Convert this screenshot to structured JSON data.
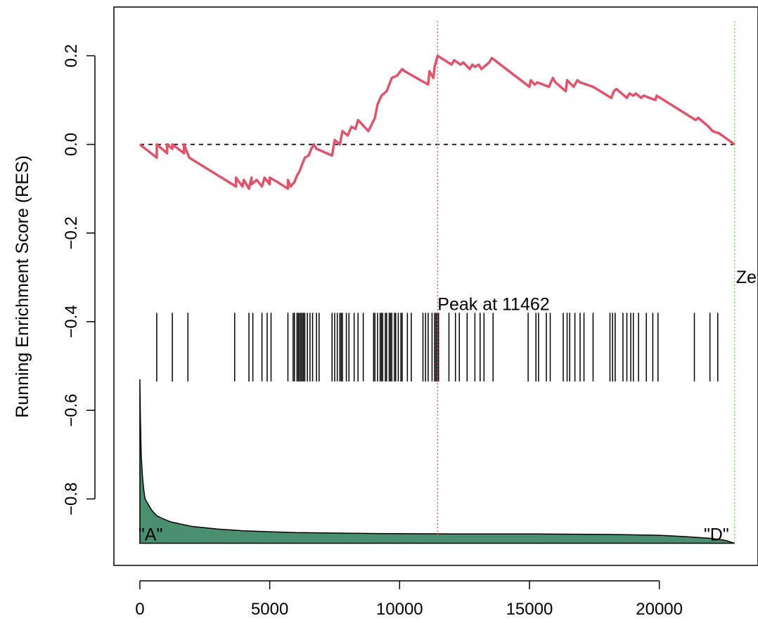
{
  "chart_data": {
    "type": "line",
    "title": "",
    "xlabel": "",
    "ylabel": "Running Enrichment Score (RES)",
    "xlim": [
      -1000,
      23800
    ],
    "ylim": [
      -0.95,
      0.31
    ],
    "x_ticks": [
      {
        "value": 0,
        "label": "0"
      },
      {
        "value": 5000,
        "label": "5000"
      },
      {
        "value": 10000,
        "label": "10000"
      },
      {
        "value": 15000,
        "label": "15000"
      },
      {
        "value": 20000,
        "label": "20000"
      }
    ],
    "y_ticks": [
      {
        "value": 0.2,
        "label": "0.2"
      },
      {
        "value": 0.0,
        "label": "0.0"
      },
      {
        "value": -0.2,
        "label": "−0.2"
      },
      {
        "value": -0.4,
        "label": "−0.4"
      },
      {
        "value": -0.6,
        "label": "−0.6"
      },
      {
        "value": -0.8,
        "label": "−0.8"
      }
    ],
    "grid": false,
    "legend": "none",
    "colors": {
      "res_line": "#DF536B",
      "peak_line": "#DF536B",
      "zero_line": "#61D04F",
      "baseline": "#000000",
      "hits": "#000000",
      "rank_fill": "#4A8F6F",
      "rank_outline": "#000000"
    },
    "reference_lines": {
      "baseline_y": 0.0,
      "peak_x": 11462,
      "zero_x": 22900
    },
    "annotations": {
      "peak_label": "Peak at 11462",
      "peak_label_y": -0.345,
      "zero_label": "Ze",
      "zero_label_y": -0.3,
      "left_group_label": "\"A\"",
      "right_group_label": "\"D\""
    },
    "series": [
      {
        "values_x": [
          0,
          650,
          650,
          1050,
          1050,
          1250,
          1250,
          1700,
          1700,
          1900,
          3700,
          3700,
          3950,
          4000,
          4200,
          4300,
          4300,
          4500,
          4700,
          4800,
          5000,
          5000,
          5300,
          5700,
          5700,
          5800,
          5950,
          6050,
          6150,
          6250,
          6350,
          6500,
          6600,
          6700,
          6800,
          7400,
          7500,
          7700,
          7800,
          8000,
          8150,
          8300,
          8400,
          8800,
          9050,
          9150,
          9300,
          9400,
          9500,
          9600,
          9700,
          9900,
          10100,
          10200,
          11100,
          11150,
          11300,
          11350,
          11462,
          12000,
          12100,
          12350,
          12450,
          12700,
          12800,
          12900,
          13050,
          13150,
          13450,
          13550,
          15000,
          15050,
          15200,
          15300,
          15750,
          15900,
          16000,
          16400,
          16450,
          16700,
          16850,
          16950,
          17450,
          18150,
          18250,
          18350,
          18750,
          18850,
          19000,
          19100,
          19300,
          19400,
          19850,
          19900,
          21400,
          21500,
          21900,
          22050,
          22300,
          22900
        ],
        "values_y": [
          0.0,
          -0.03,
          0.0,
          -0.02,
          0.0,
          -0.01,
          0.0,
          -0.02,
          0.0,
          -0.03,
          -0.095,
          -0.075,
          -0.095,
          -0.08,
          -0.1,
          -0.075,
          -0.09,
          -0.08,
          -0.095,
          -0.075,
          -0.09,
          -0.075,
          -0.085,
          -0.1,
          -0.08,
          -0.095,
          -0.085,
          -0.07,
          -0.06,
          -0.045,
          -0.03,
          -0.025,
          -0.01,
          0.0,
          -0.01,
          -0.025,
          0.01,
          0.0,
          0.03,
          0.02,
          0.04,
          0.035,
          0.055,
          0.03,
          0.06,
          0.09,
          0.11,
          0.115,
          0.12,
          0.135,
          0.15,
          0.155,
          0.17,
          0.165,
          0.135,
          0.165,
          0.15,
          0.175,
          0.2,
          0.18,
          0.19,
          0.18,
          0.185,
          0.17,
          0.18,
          0.175,
          0.18,
          0.17,
          0.185,
          0.195,
          0.13,
          0.145,
          0.135,
          0.14,
          0.13,
          0.15,
          0.14,
          0.12,
          0.145,
          0.13,
          0.145,
          0.14,
          0.13,
          0.105,
          0.12,
          0.125,
          0.105,
          0.115,
          0.11,
          0.115,
          0.105,
          0.11,
          0.1,
          0.11,
          0.055,
          0.06,
          0.04,
          0.03,
          0.025,
          0.0
        ]
      }
    ],
    "hits": [
      {
        "band_y_top": -0.38,
        "band_y_bottom": -0.535
      },
      [
        650,
        1250,
        1850,
        3650,
        4200,
        4350,
        4700,
        4900,
        5050,
        5700,
        5900,
        5950,
        6050,
        6100,
        6150,
        6200,
        6250,
        6300,
        6350,
        6450,
        6550,
        6650,
        6800,
        6900,
        7400,
        7500,
        7600,
        7700,
        7750,
        7800,
        7950,
        8050,
        8250,
        8400,
        8600,
        9000,
        9050,
        9150,
        9250,
        9300,
        9350,
        9450,
        9500,
        9600,
        9650,
        9700,
        9800,
        9850,
        9950,
        10050,
        10100,
        10300,
        10450,
        10900,
        11000,
        11100,
        11250,
        11350,
        11400,
        11450,
        11500,
        11900,
        12150,
        12300,
        12600,
        12900,
        13100,
        13250,
        13600,
        14950,
        15250,
        15350,
        15650,
        15800,
        16300,
        16450,
        16550,
        16750,
        16950,
        17100,
        17450,
        18100,
        18200,
        18300,
        18600,
        18750,
        18900,
        19000,
        19200,
        19500,
        19750,
        19950,
        21350,
        21950,
        22250
      ]
    ],
    "ranked_metric": {
      "baseline_y": -0.9,
      "x": [
        0,
        20,
        50,
        100,
        150,
        200,
        300,
        450,
        650,
        900,
        1200,
        1600,
        2000,
        3000,
        4000,
        6000,
        9000,
        12000,
        15000,
        18000,
        20000,
        21000,
        22000,
        22500,
        22900
      ],
      "y": [
        -0.53,
        -0.62,
        -0.7,
        -0.75,
        -0.78,
        -0.8,
        -0.81,
        -0.825,
        -0.838,
        -0.845,
        -0.852,
        -0.857,
        -0.862,
        -0.868,
        -0.872,
        -0.876,
        -0.878,
        -0.879,
        -0.879,
        -0.88,
        -0.882,
        -0.885,
        -0.889,
        -0.893,
        -0.9
      ]
    }
  }
}
